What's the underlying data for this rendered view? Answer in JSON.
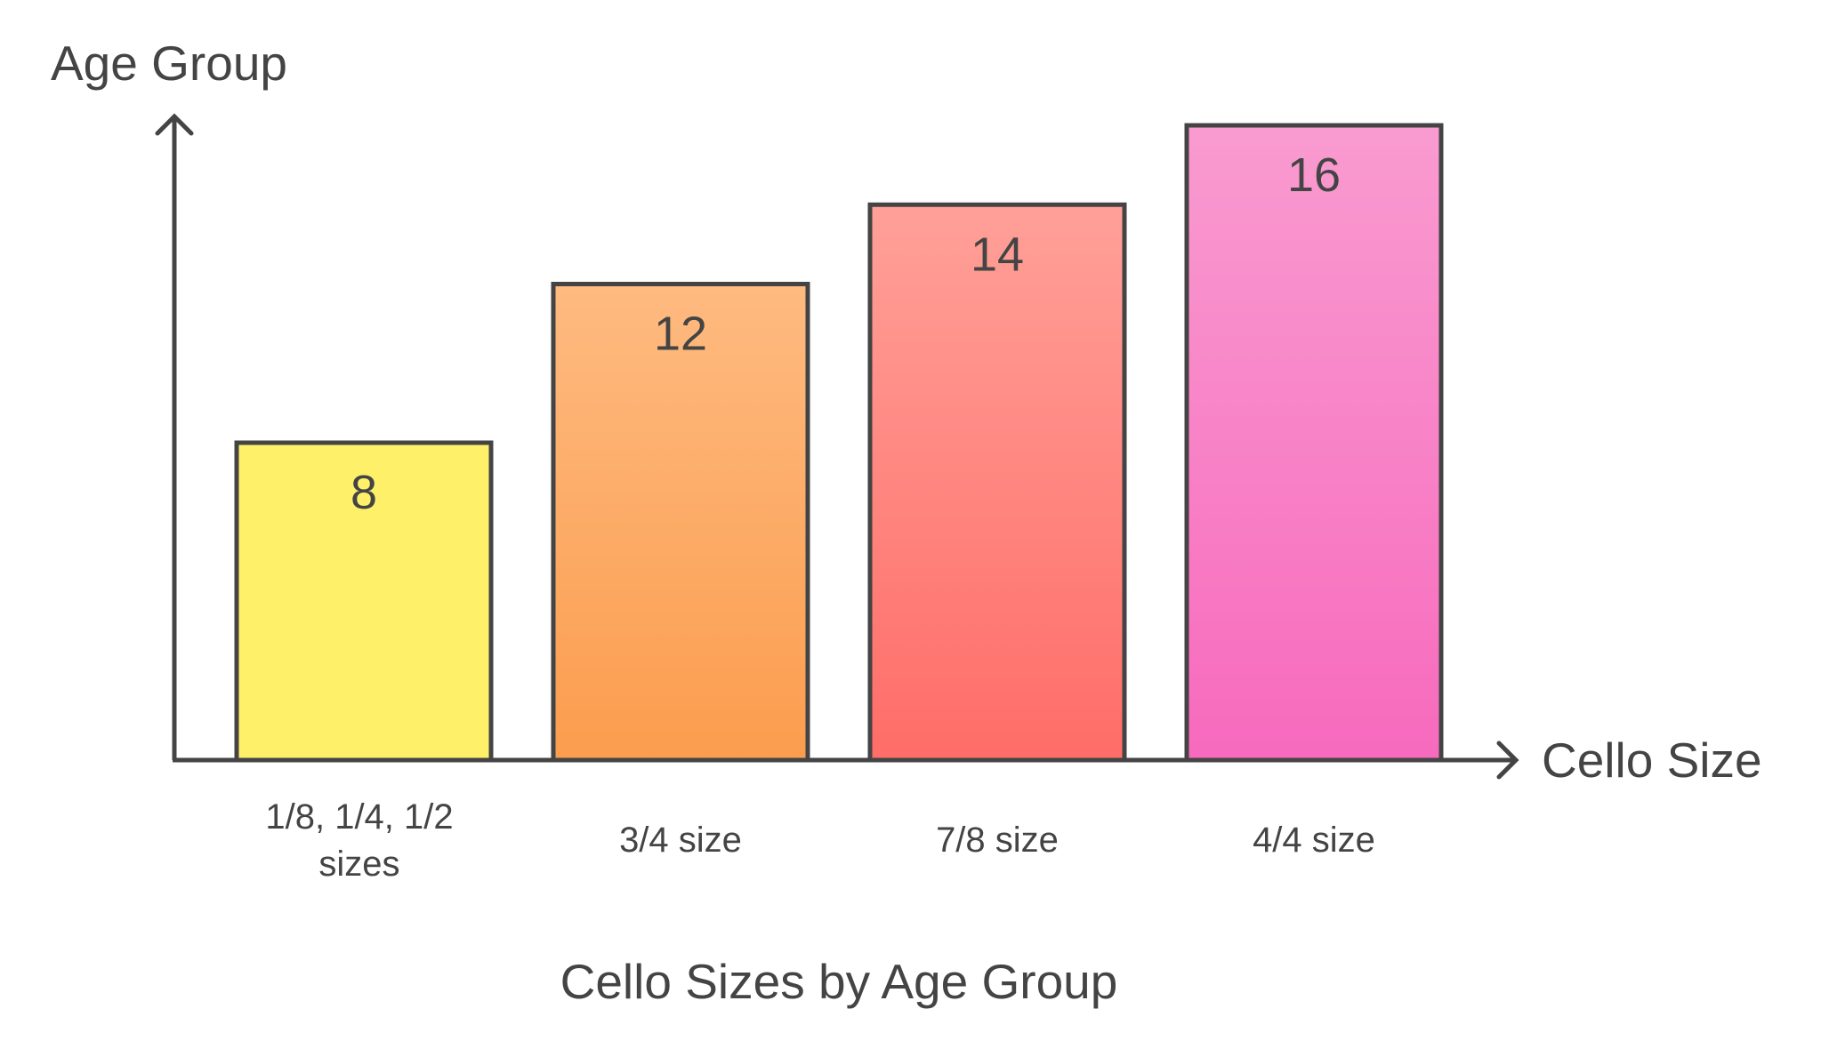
{
  "chart_data": {
    "type": "bar",
    "title": "Cello Sizes by Age Group",
    "xlabel": "Cello Size",
    "ylabel": "Age Group",
    "categories": [
      [
        "1/8, 1/4, 1/2",
        "sizes"
      ],
      [
        "3/4 size"
      ],
      [
        "7/8 size"
      ],
      [
        "4/4 size"
      ]
    ],
    "values": [
      8,
      12,
      14,
      16
    ],
    "data_labels": [
      "8",
      "12",
      "14",
      "16"
    ],
    "ylim": [
      0,
      16
    ],
    "grid": false,
    "legend": "none",
    "colors": [
      [
        "#fff06a",
        "#fff06a"
      ],
      [
        "#feba80",
        "#fb9d4e"
      ],
      [
        "#ffa098",
        "#ff6d68"
      ],
      [
        "#f99bd0",
        "#f76abd"
      ]
    ],
    "stroke_color": "#444444"
  }
}
